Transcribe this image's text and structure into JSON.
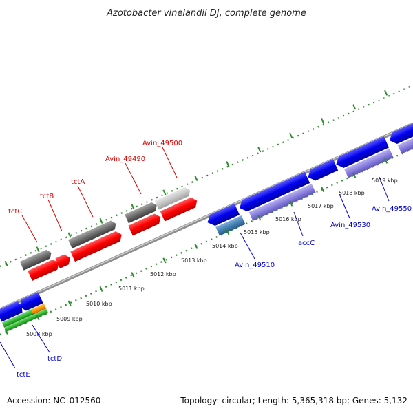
{
  "title": "Azotobacter vinelandii DJ, complete genome",
  "footer": {
    "accession": "Accession: NC_012560",
    "summary": "Topology: circular; Length: 5,365,318 bp; Genes: 5,132"
  },
  "colors": {
    "backbone": "#9a9a9a",
    "tick": "#2e8b2e",
    "forward_label": "#dd0000",
    "reverse_label": "#0000cc"
  },
  "scale": {
    "labels": [
      "5008 kbp",
      "5009 kbp",
      "5010 kbp",
      "5011 kbp",
      "5012 kbp",
      "5013 kbp",
      "5014 kbp",
      "5015 kbp",
      "5016 kbp",
      "5017 kbp",
      "5018 kbp",
      "5019 kbp"
    ]
  },
  "gene_labels": {
    "forward": [
      "tctC",
      "tctB",
      "tctA",
      "Avin_49490",
      "Avin_49500"
    ],
    "reverse": [
      "tctE",
      "tctD",
      "Avin_49510",
      "accC",
      "Avin_49530",
      "Avin_49550"
    ]
  }
}
